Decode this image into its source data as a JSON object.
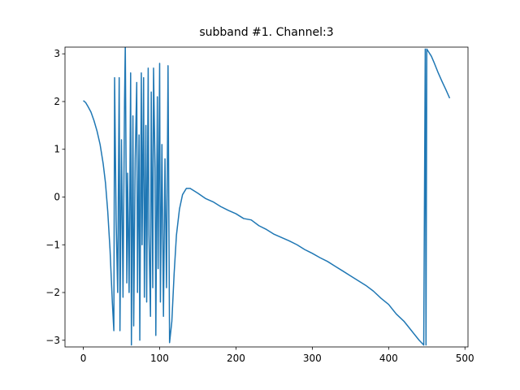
{
  "chart_data": {
    "type": "line",
    "title": "subband #1. Channel:3",
    "x": [
      0,
      3,
      6,
      10,
      14,
      18,
      22,
      26,
      29,
      32,
      35,
      38,
      40,
      41,
      43,
      45,
      47,
      48,
      50,
      52,
      54,
      55,
      57,
      58,
      60,
      62,
      63,
      65,
      66,
      68,
      70,
      71,
      73,
      74,
      76,
      77,
      79,
      80,
      82,
      83,
      85,
      86,
      88,
      89,
      91,
      92,
      94,
      95,
      97,
      98,
      100,
      101,
      103,
      105,
      107,
      109,
      111,
      113,
      116,
      119,
      122,
      126,
      130,
      135,
      140,
      150,
      160,
      170,
      180,
      190,
      200,
      210,
      220,
      230,
      240,
      250,
      260,
      270,
      280,
      290,
      300,
      310,
      320,
      330,
      340,
      350,
      360,
      370,
      380,
      390,
      400,
      410,
      420,
      430,
      440,
      446,
      448,
      449,
      450,
      452,
      456,
      460,
      465,
      470,
      475,
      480
    ],
    "series": [
      {
        "color": "#1f77b4",
        "values": [
          2.02,
          1.98,
          1.9,
          1.78,
          1.6,
          1.38,
          1.1,
          0.7,
          0.3,
          -0.3,
          -1.1,
          -2.2,
          -2.8,
          2.5,
          -0.5,
          -2.0,
          2.5,
          -2.8,
          1.2,
          -2.1,
          2.0,
          3.2,
          -1.8,
          0.5,
          -2.0,
          2.6,
          -3.1,
          1.7,
          -2.7,
          0.8,
          2.4,
          -2.0,
          1.3,
          -3.0,
          2.6,
          -1.0,
          2.5,
          -2.1,
          1.5,
          -2.2,
          2.7,
          -0.8,
          -2.5,
          2.2,
          -1.9,
          2.7,
          0.6,
          -2.9,
          2.1,
          -1.5,
          2.8,
          -2.2,
          1.1,
          -2.5,
          0.8,
          -1.9,
          2.75,
          -3.05,
          -2.6,
          -1.6,
          -0.8,
          -0.25,
          0.05,
          0.18,
          0.18,
          0.08,
          -0.03,
          -0.1,
          -0.2,
          -0.28,
          -0.35,
          -0.45,
          -0.48,
          -0.6,
          -0.68,
          -0.78,
          -0.85,
          -0.92,
          -1.0,
          -1.1,
          -1.18,
          -1.27,
          -1.35,
          -1.45,
          -1.55,
          -1.65,
          -1.75,
          -1.85,
          -1.97,
          -2.12,
          -2.25,
          -2.45,
          -2.6,
          -2.8,
          -3.0,
          -3.1,
          3.1,
          -3.1,
          3.1,
          3.05,
          2.95,
          2.8,
          2.6,
          2.42,
          2.25,
          2.07
        ]
      }
    ],
    "xlim": [
      -24,
      504
    ],
    "ylim": [
      -3.14,
      3.14
    ],
    "xticks": [
      0,
      100,
      200,
      300,
      400,
      500
    ],
    "yticks": [
      {
        "value": -3,
        "label": "−3"
      },
      {
        "value": -2,
        "label": "−2"
      },
      {
        "value": -1,
        "label": "−1"
      },
      0,
      1,
      2,
      3
    ]
  }
}
